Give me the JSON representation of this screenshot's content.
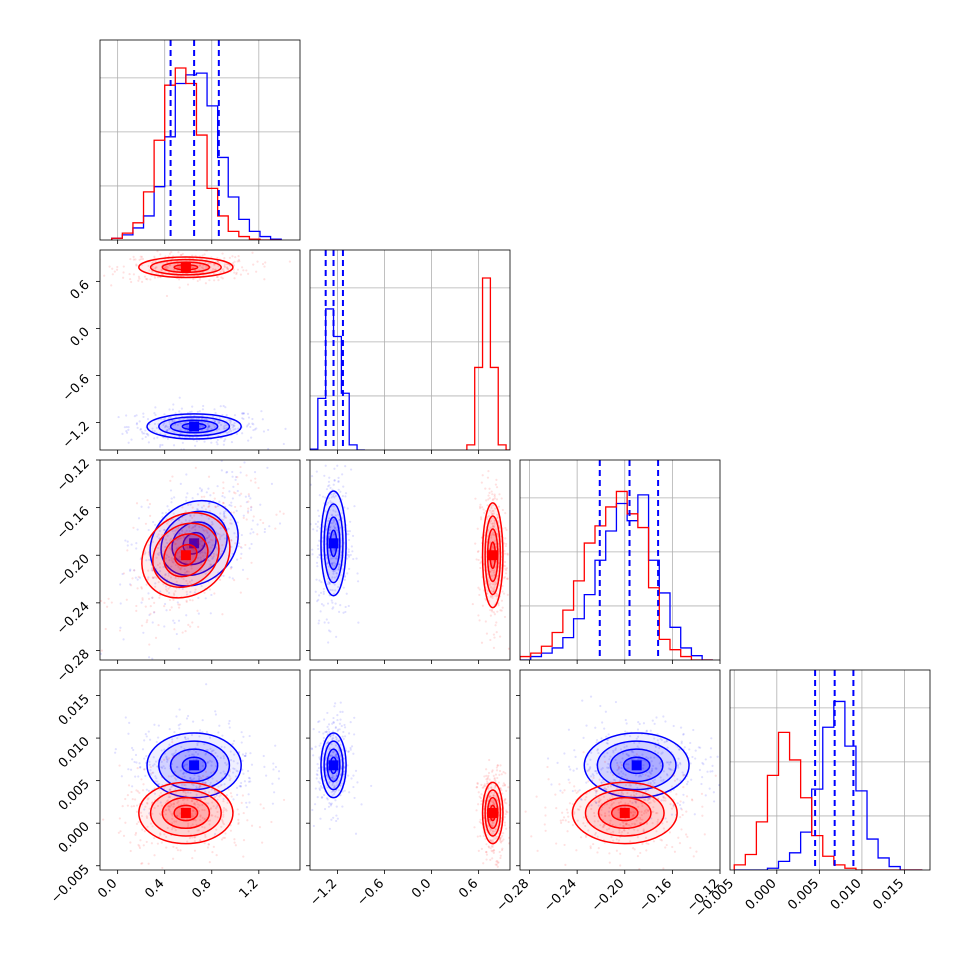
{
  "chart_data": {
    "type": "corner",
    "title": "",
    "parameters": [
      {
        "label": "",
        "range": [
          -0.15,
          1.55
        ],
        "ticks": [
          "0.0",
          "0.4",
          "0.8",
          "1.2"
        ],
        "tick_values": [
          0.0,
          0.4,
          0.8,
          1.2
        ],
        "quantiles_blue": [
          0.45,
          0.65,
          0.86
        ]
      },
      {
        "label": "",
        "range": [
          -1.55,
          1.0
        ],
        "ticks": [
          "−1.2",
          "−0.6",
          "0.0",
          "0.6"
        ],
        "tick_values": [
          -1.2,
          -0.6,
          0.0,
          0.6
        ],
        "quantiles_blue": [
          -1.35,
          -1.25,
          -1.13
        ]
      },
      {
        "label": "",
        "range": [
          -0.288,
          -0.12
        ],
        "ticks": [
          "−0.28",
          "−0.24",
          "−0.20",
          "−0.16",
          "−0.12"
        ],
        "tick_values": [
          -0.28,
          -0.24,
          -0.2,
          -0.16,
          -0.12
        ],
        "quantiles_blue": [
          -0.221,
          -0.196,
          -0.172
        ]
      },
      {
        "label": "",
        "range": [
          -0.0055,
          0.018
        ],
        "ticks": [
          "−0.005",
          "0.000",
          "0.005",
          "0.010",
          "0.015"
        ],
        "tick_values": [
          -0.005,
          0.0,
          0.005,
          0.01,
          0.015
        ],
        "quantiles_blue": [
          0.0045,
          0.0068,
          0.009
        ]
      }
    ],
    "series": [
      {
        "color": "#0000ff",
        "centers": [
          0.65,
          -1.25,
          -0.19,
          0.0068
        ],
        "sigmas": [
          0.2,
          0.08,
          0.022,
          0.0019
        ],
        "correlation_0_2": 0.55,
        "hist": [
          {
            "bins": [
              -0.05,
              0.04,
              0.13,
              0.22,
              0.31,
              0.4,
              0.49,
              0.58,
              0.67,
              0.76,
              0.85,
              0.94,
              1.03,
              1.12,
              1.21,
              1.3,
              1.39
            ],
            "counts": [
              0.01,
              0.03,
              0.07,
              0.14,
              0.31,
              0.6,
              0.91,
              0.96,
              0.97,
              0.78,
              0.48,
              0.25,
              0.12,
              0.05,
              0.02,
              0.005
            ]
          },
          {
            "bins": [
              -1.55,
              -1.45,
              -1.35,
              -1.25,
              -1.15,
              -1.05,
              -0.95,
              -0.85
            ],
            "counts": [
              0.005,
              0.3,
              0.82,
              0.66,
              0.33,
              0.03,
              0.0
            ]
          },
          {
            "bins": [
              -0.288,
              -0.279,
              -0.27,
              -0.261,
              -0.252,
              -0.243,
              -0.234,
              -0.225,
              -0.216,
              -0.207,
              -0.198,
              -0.189,
              -0.18,
              -0.171,
              -0.162,
              -0.153,
              -0.144,
              -0.135,
              -0.126
            ],
            "counts": [
              0.0,
              0.02,
              0.04,
              0.07,
              0.13,
              0.24,
              0.38,
              0.58,
              0.75,
              0.91,
              0.81,
              0.96,
              0.58,
              0.39,
              0.19,
              0.07,
              0.025,
              0.0
            ]
          },
          {
            "bins": [
              -0.005,
              -0.0037,
              -0.0024,
              -0.0011,
              0.0002,
              0.0015,
              0.0028,
              0.0041,
              0.0054,
              0.0067,
              0.008,
              0.0093,
              0.0106,
              0.0119,
              0.0132,
              0.0145,
              0.0158,
              0.0171
            ],
            "counts": [
              0.0,
              0.0,
              0.0,
              0.01,
              0.05,
              0.1,
              0.22,
              0.47,
              0.83,
              0.98,
              0.72,
              0.46,
              0.18,
              0.07,
              0.02,
              0.0,
              0.0
            ]
          }
        ]
      },
      {
        "color": "#ff0000",
        "centers": [
          0.58,
          0.78,
          -0.2,
          0.0012
        ],
        "sigmas": [
          0.2,
          0.065,
          0.022,
          0.0018
        ],
        "correlation_0_2": 0.5,
        "hist": [
          {
            "bins": [
              -0.05,
              0.04,
              0.13,
              0.22,
              0.31,
              0.4,
              0.49,
              0.58,
              0.67,
              0.76,
              0.85,
              0.94,
              1.03,
              1.12,
              1.21,
              1.3,
              1.39
            ],
            "counts": [
              0.01,
              0.04,
              0.1,
              0.28,
              0.58,
              0.9,
              1.0,
              0.91,
              0.61,
              0.3,
              0.14,
              0.05,
              0.02,
              0.005,
              0.0,
              0.0
            ]
          },
          {
            "bins": [
              0.45,
              0.55,
              0.65,
              0.75,
              0.85,
              0.95,
              1.0
            ],
            "counts": [
              0.03,
              0.48,
              1.0,
              0.48,
              0.03,
              0.0
            ]
          },
          {
            "bins": [
              -0.288,
              -0.279,
              -0.27,
              -0.261,
              -0.252,
              -0.243,
              -0.234,
              -0.225,
              -0.216,
              -0.207,
              -0.198,
              -0.189,
              -0.18,
              -0.171,
              -0.162,
              -0.153,
              -0.144,
              -0.135,
              -0.126
            ],
            "counts": [
              0.02,
              0.04,
              0.08,
              0.16,
              0.29,
              0.46,
              0.68,
              0.78,
              0.89,
              0.98,
              0.85,
              0.77,
              0.42,
              0.12,
              0.06,
              0.02,
              0.0,
              0.0
            ]
          },
          {
            "bins": [
              -0.005,
              -0.0037,
              -0.0024,
              -0.0011,
              0.0002,
              0.0015,
              0.0028,
              0.0041,
              0.0054,
              0.0067,
              0.008,
              0.0093,
              0.0106,
              0.0119,
              0.0132,
              0.0145,
              0.0158,
              0.0171
            ],
            "counts": [
              0.03,
              0.09,
              0.28,
              0.55,
              0.8,
              0.64,
              0.42,
              0.2,
              0.08,
              0.03,
              0.01,
              0.0,
              0.0,
              0.0,
              0.0,
              0.0,
              0.0
            ]
          }
        ]
      }
    ],
    "grid": true,
    "legend": "none"
  }
}
